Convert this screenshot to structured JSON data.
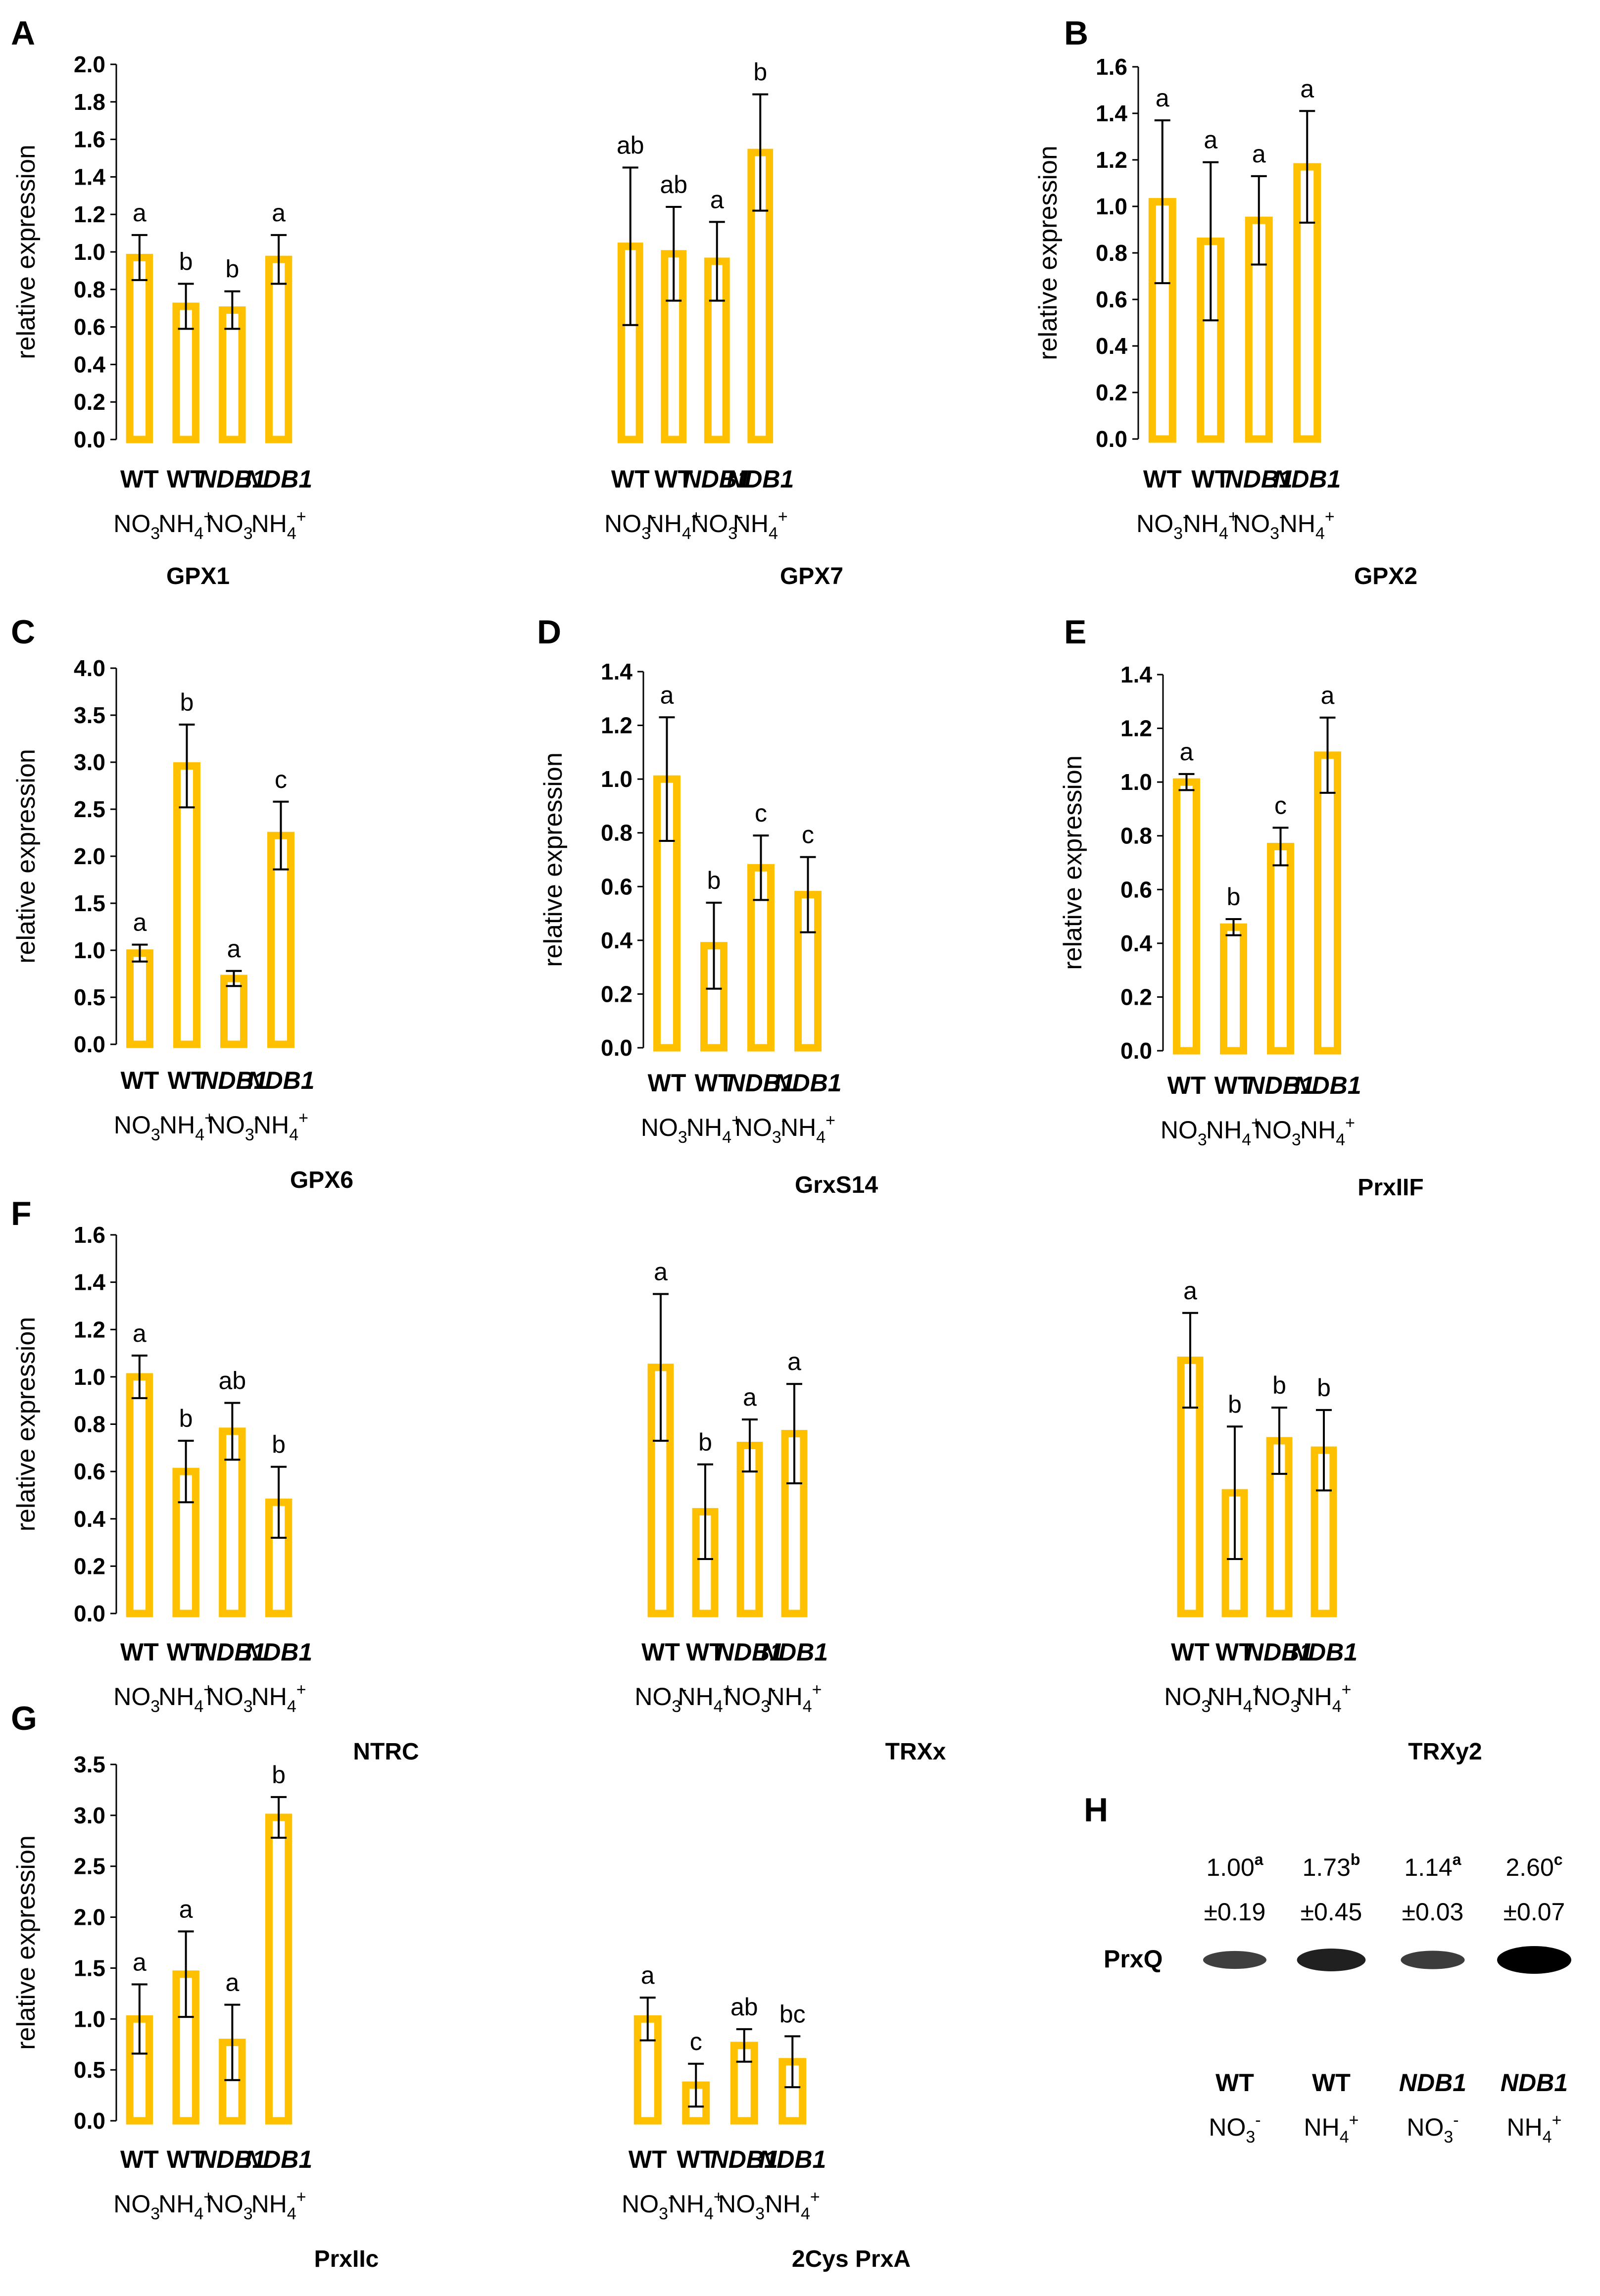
{
  "colors": {
    "bar_outline": "#FFC000",
    "error_bar": "#000000",
    "text": "#000000",
    "band": "#000000"
  },
  "y_axis_label": "relative expression",
  "chart_data": [
    {
      "panel": "A",
      "type": "bar",
      "gene": "GPX1",
      "ylabel": "relative expression",
      "ylim": [
        0,
        2.0
      ],
      "yticks": [
        "0.0",
        "0.2",
        "0.4",
        "0.6",
        "0.8",
        "1.0",
        "1.2",
        "1.4",
        "1.6",
        "1.8",
        "2.0"
      ],
      "categories": [
        {
          "genotype": "WT",
          "nitrogen": "NO",
          "ion": "3",
          "charge": "-"
        },
        {
          "genotype": "WT",
          "nitrogen": "NH",
          "ion": "4",
          "charge": "+"
        },
        {
          "genotype": "NDB1",
          "nitrogen": "NO",
          "ion": "3",
          "charge": "-"
        },
        {
          "genotype": "NDB1",
          "nitrogen": "NH",
          "ion": "4",
          "charge": "+"
        }
      ],
      "values": [
        0.97,
        0.71,
        0.69,
        0.96
      ],
      "errors": [
        0.12,
        0.12,
        0.1,
        0.13
      ],
      "significance": [
        "a",
        "b",
        "b",
        "a"
      ]
    },
    {
      "panel": "",
      "type": "bar",
      "gene": "GPX7",
      "ylabel": "",
      "ylim": [
        0,
        2.0
      ],
      "yticks": [],
      "categories": [
        {
          "genotype": "WT",
          "nitrogen": "NO",
          "ion": "3",
          "charge": "-"
        },
        {
          "genotype": "WT",
          "nitrogen": "NH",
          "ion": "4",
          "charge": "+"
        },
        {
          "genotype": "NDB1",
          "nitrogen": "NO",
          "ion": "3",
          "charge": "-"
        },
        {
          "genotype": "NDB1",
          "nitrogen": "NH",
          "ion": "4",
          "charge": "+"
        }
      ],
      "values": [
        1.03,
        0.99,
        0.95,
        1.53
      ],
      "errors": [
        0.42,
        0.25,
        0.21,
        0.31
      ],
      "significance": [
        "ab",
        "ab",
        "a",
        "b"
      ]
    },
    {
      "panel": "B",
      "type": "bar",
      "gene": "GPX2",
      "ylabel": "relative expression",
      "ylim": [
        0,
        1.6
      ],
      "yticks": [
        "0.0",
        "0.2",
        "0.4",
        "0.6",
        "0.8",
        "1.0",
        "1.2",
        "1.4",
        "1.6"
      ],
      "categories": [
        {
          "genotype": "WT",
          "nitrogen": "NO",
          "ion": "3",
          "charge": "-"
        },
        {
          "genotype": "WT",
          "nitrogen": "NH",
          "ion": "4",
          "charge": "+"
        },
        {
          "genotype": "NDB1",
          "nitrogen": "NO",
          "ion": "3",
          "charge": "-"
        },
        {
          "genotype": "NDB1",
          "nitrogen": "NH",
          "ion": "4",
          "charge": "+"
        }
      ],
      "values": [
        1.02,
        0.85,
        0.94,
        1.17
      ],
      "errors": [
        0.35,
        0.34,
        0.19,
        0.24
      ],
      "significance": [
        "a",
        "a",
        "a",
        "a"
      ]
    },
    {
      "panel": "C",
      "type": "bar",
      "gene": "GPX6",
      "ylabel": "relative expression",
      "ylim": [
        0,
        4.0
      ],
      "yticks": [
        "0.0",
        "0.5",
        "1.0",
        "1.5",
        "2.0",
        "2.5",
        "3.0",
        "3.5",
        "4.0"
      ],
      "categories": [
        {
          "genotype": "WT",
          "nitrogen": "NO",
          "ion": "3",
          "charge": "-"
        },
        {
          "genotype": "WT",
          "nitrogen": "NH",
          "ion": "4",
          "charge": "+"
        },
        {
          "genotype": "NDB1",
          "nitrogen": "NO",
          "ion": "3",
          "charge": "-"
        },
        {
          "genotype": "NDB1",
          "nitrogen": "NH",
          "ion": "4",
          "charge": "+"
        }
      ],
      "values": [
        0.97,
        2.96,
        0.7,
        2.22
      ],
      "errors": [
        0.09,
        0.44,
        0.08,
        0.36
      ],
      "significance": [
        "a",
        "b",
        "a",
        "c"
      ]
    },
    {
      "panel": "D",
      "type": "bar",
      "gene": "GrxS14",
      "ylabel": "relative expression",
      "ylim": [
        0,
        1.4
      ],
      "yticks": [
        "0.0",
        "0.2",
        "0.4",
        "0.6",
        "0.8",
        "1.0",
        "1.2",
        "1.4"
      ],
      "categories": [
        {
          "genotype": "WT",
          "nitrogen": "NO",
          "ion": "3",
          "charge": "-"
        },
        {
          "genotype": "WT",
          "nitrogen": "NH",
          "ion": "4",
          "charge": "+"
        },
        {
          "genotype": "NDB1",
          "nitrogen": "NO",
          "ion": "3",
          "charge": "-"
        },
        {
          "genotype": "NDB1",
          "nitrogen": "NH",
          "ion": "4",
          "charge": "+"
        }
      ],
      "values": [
        1.0,
        0.38,
        0.67,
        0.57
      ],
      "errors": [
        0.23,
        0.16,
        0.12,
        0.14
      ],
      "significance": [
        "a",
        "b",
        "c",
        "c"
      ]
    },
    {
      "panel": "E",
      "type": "bar",
      "gene": "PrxIIF",
      "ylabel": "relative expression",
      "ylim": [
        0,
        1.4
      ],
      "yticks": [
        "0.0",
        "0.2",
        "0.4",
        "0.6",
        "0.8",
        "1.0",
        "1.2",
        "1.4"
      ],
      "categories": [
        {
          "genotype": "WT",
          "nitrogen": "NO",
          "ion": "3",
          "charge": "-"
        },
        {
          "genotype": "WT",
          "nitrogen": "NH",
          "ion": "4",
          "charge": "+"
        },
        {
          "genotype": "NDB1",
          "nitrogen": "NO",
          "ion": "3",
          "charge": "-"
        },
        {
          "genotype": "NDB1",
          "nitrogen": "NH",
          "ion": "4",
          "charge": "+"
        }
      ],
      "values": [
        1.0,
        0.46,
        0.76,
        1.1
      ],
      "errors": [
        0.03,
        0.03,
        0.07,
        0.14
      ],
      "significance": [
        "a",
        "b",
        "c",
        "a"
      ]
    },
    {
      "panel": "F",
      "type": "bar",
      "gene": "NTRC",
      "ylabel": "relative expression",
      "ylim": [
        0,
        1.6
      ],
      "yticks": [
        "0.0",
        "0.2",
        "0.4",
        "0.6",
        "0.8",
        "1.0",
        "1.2",
        "1.4",
        "1.6"
      ],
      "categories": [
        {
          "genotype": "WT",
          "nitrogen": "NO",
          "ion": "3",
          "charge": "-"
        },
        {
          "genotype": "WT",
          "nitrogen": "NH",
          "ion": "4",
          "charge": "+"
        },
        {
          "genotype": "NDB1",
          "nitrogen": "NO",
          "ion": "3",
          "charge": "-"
        },
        {
          "genotype": "NDB1",
          "nitrogen": "NH",
          "ion": "4",
          "charge": "+"
        }
      ],
      "values": [
        1.0,
        0.6,
        0.77,
        0.47
      ],
      "errors": [
        0.09,
        0.13,
        0.12,
        0.15
      ],
      "significance": [
        "a",
        "b",
        "ab",
        "b"
      ]
    },
    {
      "panel": "",
      "type": "bar",
      "gene": "TRXx",
      "ylabel": "",
      "ylim": [
        0,
        1.6
      ],
      "yticks": [],
      "categories": [
        {
          "genotype": "WT",
          "nitrogen": "NO",
          "ion": "3",
          "charge": "-"
        },
        {
          "genotype": "WT",
          "nitrogen": "NH",
          "ion": "4",
          "charge": "+"
        },
        {
          "genotype": "NDB1",
          "nitrogen": "NO",
          "ion": "3",
          "charge": "-"
        },
        {
          "genotype": "NDB1",
          "nitrogen": "NH",
          "ion": "4",
          "charge": "+"
        }
      ],
      "values": [
        1.04,
        0.43,
        0.71,
        0.76
      ],
      "errors": [
        0.31,
        0.2,
        0.11,
        0.21
      ],
      "significance": [
        "a",
        "b",
        "a",
        "a"
      ]
    },
    {
      "panel": "",
      "type": "bar",
      "gene": "TRXy2",
      "ylabel": "",
      "ylim": [
        0,
        1.6
      ],
      "yticks": [],
      "categories": [
        {
          "genotype": "WT",
          "nitrogen": "NO",
          "ion": "3",
          "charge": "-"
        },
        {
          "genotype": "WT",
          "nitrogen": "NH",
          "ion": "4",
          "charge": "+"
        },
        {
          "genotype": "NDB1",
          "nitrogen": "NO",
          "ion": "3",
          "charge": "-"
        },
        {
          "genotype": "NDB1",
          "nitrogen": "NH",
          "ion": "4",
          "charge": "+"
        }
      ],
      "values": [
        1.07,
        0.51,
        0.73,
        0.69
      ],
      "errors": [
        0.2,
        0.28,
        0.14,
        0.17
      ],
      "significance": [
        "a",
        "b",
        "b",
        "b"
      ]
    },
    {
      "panel": "G",
      "type": "bar",
      "gene": "PrxIIc",
      "ylabel": "relative expression",
      "ylim": [
        0,
        3.5
      ],
      "yticks": [
        "0.0",
        "0.5",
        "1.0",
        "1.5",
        "2.0",
        "2.5",
        "3.0",
        "3.5"
      ],
      "categories": [
        {
          "genotype": "WT",
          "nitrogen": "NO",
          "ion": "3",
          "charge": "-"
        },
        {
          "genotype": "WT",
          "nitrogen": "NH",
          "ion": "4",
          "charge": "+"
        },
        {
          "genotype": "NDB1",
          "nitrogen": "NO",
          "ion": "3",
          "charge": "-"
        },
        {
          "genotype": "NDB1",
          "nitrogen": "NH",
          "ion": "4",
          "charge": "+"
        }
      ],
      "values": [
        1.0,
        1.44,
        0.77,
        2.98
      ],
      "errors": [
        0.34,
        0.42,
        0.37,
        0.2
      ],
      "significance": [
        "a",
        "a",
        "a",
        "b"
      ]
    },
    {
      "panel": "",
      "type": "bar",
      "gene": "2Cys PrxA",
      "ylabel": "",
      "ylim": [
        0,
        3.5
      ],
      "yticks": [],
      "categories": [
        {
          "genotype": "WT",
          "nitrogen": "NO",
          "ion": "3",
          "charge": "-"
        },
        {
          "genotype": "WT",
          "nitrogen": "NH",
          "ion": "4",
          "charge": "+"
        },
        {
          "genotype": "NDB1",
          "nitrogen": "NO",
          "ion": "3",
          "charge": "-"
        },
        {
          "genotype": "NDB1",
          "nitrogen": "NH",
          "ion": "4",
          "charge": "+"
        }
      ],
      "values": [
        1.0,
        0.35,
        0.74,
        0.58
      ],
      "errors": [
        0.21,
        0.21,
        0.16,
        0.25
      ],
      "significance": [
        "a",
        "c",
        "ab",
        "bc"
      ]
    }
  ],
  "blot": {
    "panel": "H",
    "protein": "PrxQ",
    "lanes": [
      {
        "value": "1.00",
        "letter": "a",
        "sd": "±0.19",
        "genotype": "WT",
        "nitrogen": "NO",
        "ion": "3",
        "charge": "-",
        "intensity": 0.45
      },
      {
        "value": "1.73",
        "letter": "b",
        "sd": "±0.45",
        "genotype": "WT",
        "nitrogen": "NH",
        "ion": "4",
        "charge": "+",
        "intensity": 0.72
      },
      {
        "value": "1.14",
        "letter": "a",
        "sd": "±0.03",
        "genotype": "NDB1",
        "nitrogen": "NO",
        "ion": "3",
        "charge": "-",
        "intensity": 0.48
      },
      {
        "value": "2.60",
        "letter": "c",
        "sd": "±0.07",
        "genotype": "NDB1",
        "nitrogen": "NH",
        "ion": "4",
        "charge": "+",
        "intensity": 1.0
      }
    ]
  }
}
